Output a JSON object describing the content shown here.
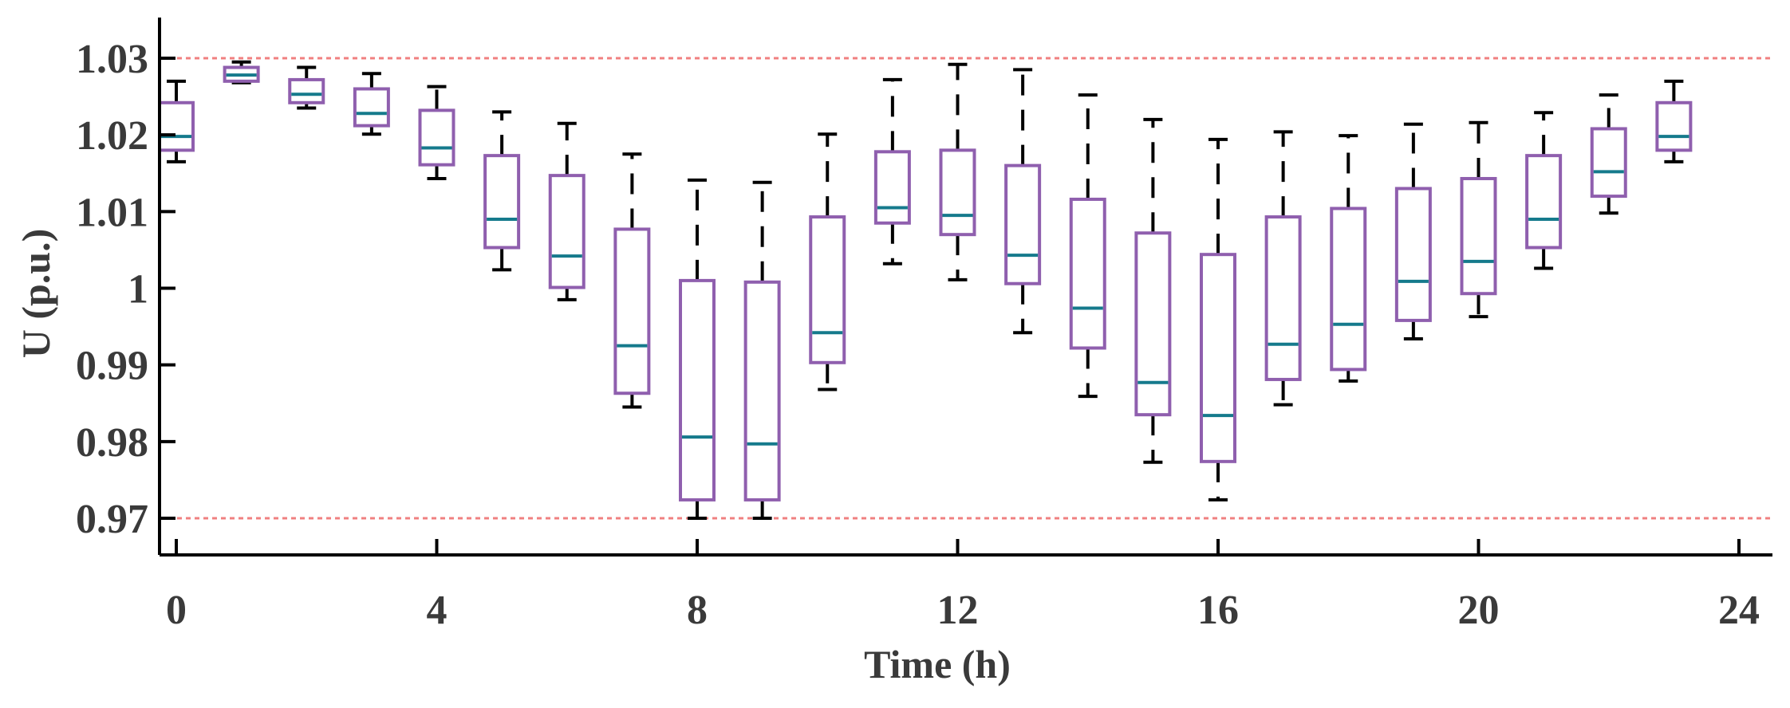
{
  "chart_data": {
    "type": "boxplot",
    "title": "",
    "xlabel": "Time (h)",
    "ylabel": "U (p.u.)",
    "xlim": [
      0,
      24
    ],
    "ylim": [
      0.965,
      1.035
    ],
    "x_ticks": [
      0,
      4,
      8,
      12,
      16,
      20,
      24
    ],
    "x_tick_labels": [
      "0",
      "4",
      "8",
      "12",
      "16",
      "20",
      "24"
    ],
    "y_ticks": [
      0.97,
      0.98,
      0.99,
      1.0,
      1.01,
      1.02,
      1.03
    ],
    "y_tick_labels": [
      "0.97",
      "0.98",
      "0.99",
      "1",
      "1.01",
      "1.02",
      "1.03"
    ],
    "grid": false,
    "reference_lines": [
      {
        "name": "upper-limit",
        "y": 1.03,
        "color": "#f08080",
        "style": "dashed"
      },
      {
        "name": "lower-limit",
        "y": 0.97,
        "color": "#f08080",
        "style": "dashed"
      }
    ],
    "colors": {
      "box": "#8f5fae",
      "median": "#157a8c",
      "whisker": "#000000",
      "axis": "#000000",
      "text": "#3a3a3a"
    },
    "boxes": [
      {
        "hour": 0,
        "min": 1.0165,
        "q1": 1.018,
        "median": 1.0198,
        "q3": 1.0242,
        "max": 1.027
      },
      {
        "hour": 1,
        "min": 1.0268,
        "q1": 1.027,
        "median": 1.0278,
        "q3": 1.0288,
        "max": 1.0295
      },
      {
        "hour": 2,
        "min": 1.0235,
        "q1": 1.0242,
        "median": 1.0253,
        "q3": 1.0272,
        "max": 1.0288
      },
      {
        "hour": 3,
        "min": 1.0201,
        "q1": 1.0212,
        "median": 1.0228,
        "q3": 1.026,
        "max": 1.028
      },
      {
        "hour": 4,
        "min": 1.0143,
        "q1": 1.0161,
        "median": 1.0183,
        "q3": 1.0232,
        "max": 1.0263
      },
      {
        "hour": 5,
        "min": 1.0024,
        "q1": 1.0053,
        "median": 1.009,
        "q3": 1.0173,
        "max": 1.023
      },
      {
        "hour": 6,
        "min": 0.9985,
        "q1": 1.0001,
        "median": 1.0042,
        "q3": 1.0147,
        "max": 1.0215
      },
      {
        "hour": 7,
        "min": 0.9845,
        "q1": 0.9863,
        "median": 0.9925,
        "q3": 1.0077,
        "max": 1.0175
      },
      {
        "hour": 8,
        "min": 0.97,
        "q1": 0.9724,
        "median": 0.9806,
        "q3": 1.001,
        "max": 1.0141
      },
      {
        "hour": 9,
        "min": 0.97,
        "q1": 0.9724,
        "median": 0.9797,
        "q3": 1.0008,
        "max": 1.0138
      },
      {
        "hour": 10,
        "min": 0.9868,
        "q1": 0.9903,
        "median": 0.9942,
        "q3": 1.0093,
        "max": 1.0201
      },
      {
        "hour": 11,
        "min": 1.0032,
        "q1": 1.0085,
        "median": 1.0105,
        "q3": 1.0178,
        "max": 1.0272
      },
      {
        "hour": 12,
        "min": 1.0011,
        "q1": 1.007,
        "median": 1.0095,
        "q3": 1.018,
        "max": 1.0292
      },
      {
        "hour": 13,
        "min": 0.9942,
        "q1": 1.0006,
        "median": 1.0043,
        "q3": 1.016,
        "max": 1.0285
      },
      {
        "hour": 14,
        "min": 0.9859,
        "q1": 0.9922,
        "median": 0.9974,
        "q3": 1.0116,
        "max": 1.0252
      },
      {
        "hour": 15,
        "min": 0.9773,
        "q1": 0.9835,
        "median": 0.9877,
        "q3": 1.0072,
        "max": 1.022
      },
      {
        "hour": 16,
        "min": 0.9724,
        "q1": 0.9774,
        "median": 0.9834,
        "q3": 1.0044,
        "max": 1.0194
      },
      {
        "hour": 17,
        "min": 0.9848,
        "q1": 0.9881,
        "median": 0.9927,
        "q3": 1.0093,
        "max": 1.0204
      },
      {
        "hour": 18,
        "min": 0.9879,
        "q1": 0.9894,
        "median": 0.9953,
        "q3": 1.0104,
        "max": 1.0199
      },
      {
        "hour": 19,
        "min": 0.9934,
        "q1": 0.9958,
        "median": 1.0009,
        "q3": 1.013,
        "max": 1.0214
      },
      {
        "hour": 20,
        "min": 0.9963,
        "q1": 0.9993,
        "median": 1.0035,
        "q3": 1.0143,
        "max": 1.0216
      },
      {
        "hour": 21,
        "min": 1.0026,
        "q1": 1.0053,
        "median": 1.009,
        "q3": 1.0173,
        "max": 1.0229
      },
      {
        "hour": 22,
        "min": 1.0098,
        "q1": 1.012,
        "median": 1.0152,
        "q3": 1.0208,
        "max": 1.0252
      },
      {
        "hour": 23,
        "min": 1.0165,
        "q1": 1.018,
        "median": 1.0198,
        "q3": 1.0242,
        "max": 1.027
      }
    ]
  }
}
